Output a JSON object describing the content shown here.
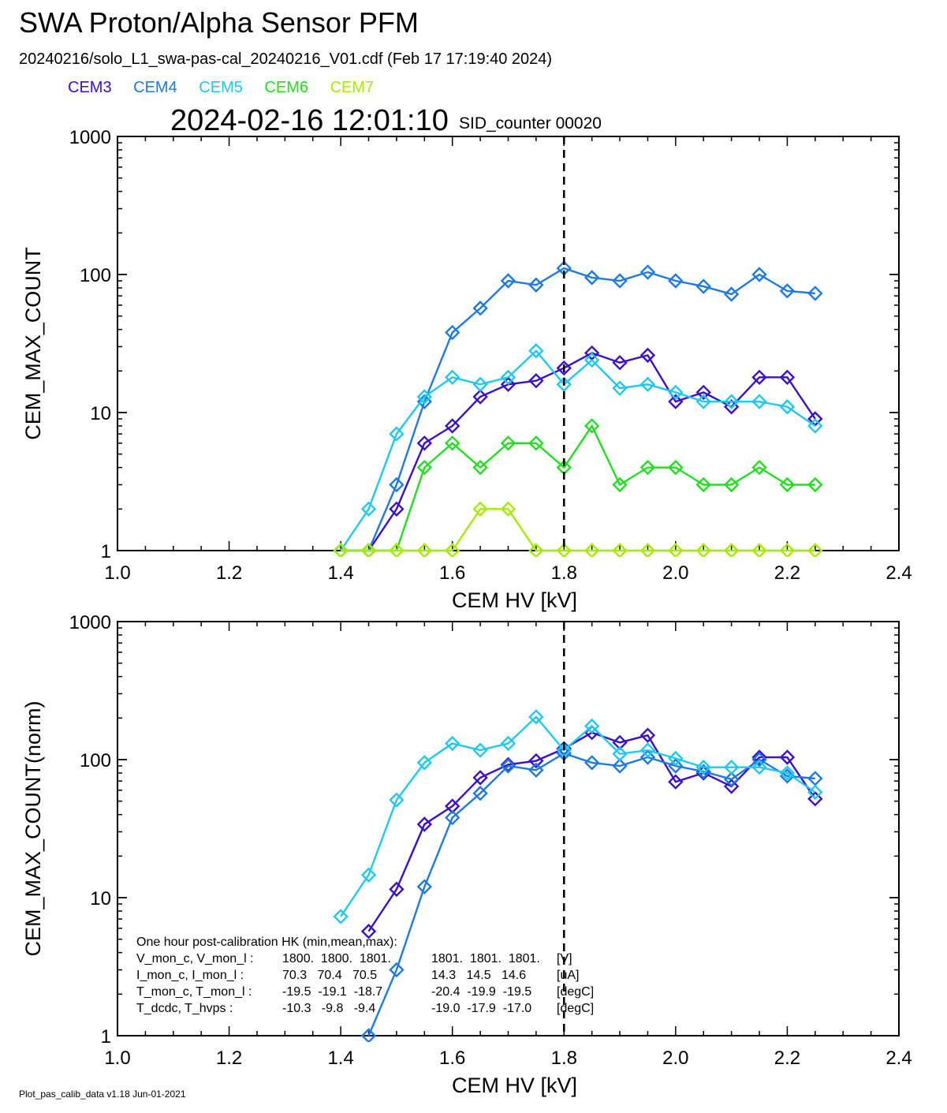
{
  "header": {
    "title": "SWA Proton/Alpha Sensor PFM",
    "subtitle": "20240216/solo_L1_swa-pas-cal_20240216_V01.cdf  (Feb 17 17:19:40 2024)",
    "timestamp": "2024-02-16 12:01:10",
    "sid_counter": "SID_counter 00020"
  },
  "legend": [
    {
      "label": "CEM3",
      "color": "#3a10cc"
    },
    {
      "label": "CEM4",
      "color": "#1e7ae0"
    },
    {
      "label": "CEM5",
      "color": "#1ec8f0"
    },
    {
      "label": "CEM6",
      "color": "#22dd22"
    },
    {
      "label": "CEM7",
      "color": "#a6ea00"
    }
  ],
  "footer": "Plot_pas_calib_data v1.18 Jun-01-2021",
  "marker_line_x": 1.8,
  "chart_data": [
    {
      "type": "line",
      "xlabel": "CEM HV [kV]",
      "ylabel": "CEM_MAX_COUNT",
      "xlim": [
        1.0,
        2.4
      ],
      "ylim": [
        1,
        1000
      ],
      "yscale": "log",
      "x_ticks": [
        "1.0",
        "1.2",
        "1.4",
        "1.6",
        "1.8",
        "2.0",
        "2.2",
        "2.4"
      ],
      "y_ticks": [
        "1",
        "10",
        "100",
        "1000"
      ],
      "series": [
        {
          "name": "CEM3",
          "color": "#3a10cc",
          "x": [
            1.4,
            1.45,
            1.5,
            1.55,
            1.6,
            1.65,
            1.7,
            1.75,
            1.8,
            1.85,
            1.9,
            1.95,
            2.0,
            2.05,
            2.1,
            2.15,
            2.2,
            2.25
          ],
          "y": [
            1,
            1,
            2,
            6,
            8,
            13,
            16,
            17,
            21,
            27,
            23,
            26,
            12,
            14,
            11,
            18,
            18,
            9
          ]
        },
        {
          "name": "CEM4",
          "color": "#1e7ae0",
          "x": [
            1.4,
            1.45,
            1.5,
            1.55,
            1.6,
            1.65,
            1.7,
            1.75,
            1.8,
            1.85,
            1.9,
            1.95,
            2.0,
            2.05,
            2.1,
            2.15,
            2.2,
            2.25
          ],
          "y": [
            1,
            1,
            3,
            12,
            38,
            57,
            90,
            84,
            111,
            95,
            90,
            104,
            90,
            82,
            72,
            100,
            76,
            73
          ]
        },
        {
          "name": "CEM5",
          "color": "#1ec8f0",
          "x": [
            1.4,
            1.45,
            1.5,
            1.55,
            1.6,
            1.65,
            1.7,
            1.75,
            1.8,
            1.85,
            1.9,
            1.95,
            2.0,
            2.05,
            2.1,
            2.15,
            2.2,
            2.25
          ],
          "y": [
            1,
            2,
            7,
            13,
            18,
            16,
            18,
            28,
            16,
            24,
            15,
            16,
            14,
            12,
            12,
            12,
            11,
            8
          ]
        },
        {
          "name": "CEM6",
          "color": "#22dd22",
          "x": [
            1.4,
            1.45,
            1.5,
            1.55,
            1.6,
            1.65,
            1.7,
            1.75,
            1.8,
            1.85,
            1.9,
            1.95,
            2.0,
            2.05,
            2.1,
            2.15,
            2.2,
            2.25
          ],
          "y": [
            1,
            1,
            1,
            4,
            6,
            4,
            6,
            6,
            4,
            8,
            3,
            4,
            4,
            3,
            3,
            4,
            3,
            3
          ]
        },
        {
          "name": "CEM7",
          "color": "#a6ea00",
          "x": [
            1.4,
            1.45,
            1.5,
            1.55,
            1.6,
            1.65,
            1.7,
            1.75,
            1.8,
            1.85,
            1.9,
            1.95,
            2.0,
            2.05,
            2.1,
            2.15,
            2.2,
            2.25
          ],
          "y": [
            1,
            1,
            1,
            1,
            1,
            2,
            2,
            1,
            1,
            1,
            1,
            1,
            1,
            1,
            1,
            1,
            1,
            1
          ]
        }
      ]
    },
    {
      "type": "line",
      "xlabel": "CEM HV [kV]",
      "ylabel": "CEM_MAX_COUNT(norm)",
      "xlim": [
        1.0,
        2.4
      ],
      "ylim": [
        1,
        1000
      ],
      "yscale": "log",
      "x_ticks": [
        "1.0",
        "1.2",
        "1.4",
        "1.6",
        "1.8",
        "2.0",
        "2.2",
        "2.4"
      ],
      "y_ticks": [
        "1",
        "10",
        "100",
        "1000"
      ],
      "series": [
        {
          "name": "CEM3",
          "color": "#3a10cc",
          "x": [
            1.45,
            1.5,
            1.55,
            1.6,
            1.65,
            1.7,
            1.75,
            1.8,
            1.85,
            1.9,
            1.95,
            2.0,
            2.05,
            2.1,
            2.15,
            2.2,
            2.25
          ],
          "y": [
            5.7,
            11.5,
            34,
            46,
            74,
            92,
            98,
            120,
            157,
            133,
            150,
            69,
            80,
            64,
            104,
            104,
            52
          ]
        },
        {
          "name": "CEM4",
          "color": "#1e7ae0",
          "x": [
            1.45,
            1.5,
            1.55,
            1.6,
            1.65,
            1.7,
            1.75,
            1.8,
            1.85,
            1.9,
            1.95,
            2.0,
            2.05,
            2.1,
            2.15,
            2.2,
            2.25
          ],
          "y": [
            1,
            3,
            12,
            38,
            57,
            90,
            84,
            111,
            95,
            90,
            104,
            90,
            82,
            72,
            100,
            76,
            73
          ]
        },
        {
          "name": "CEM5",
          "color": "#1ec8f0",
          "x": [
            1.4,
            1.45,
            1.5,
            1.55,
            1.6,
            1.65,
            1.7,
            1.75,
            1.8,
            1.85,
            1.9,
            1.95,
            2.0,
            2.05,
            2.1,
            2.15,
            2.2,
            2.25
          ],
          "y": [
            7.3,
            14.6,
            51,
            95,
            131,
            117,
            131,
            204,
            117,
            175,
            110,
            117,
            102,
            88,
            88,
            88,
            80,
            58
          ]
        }
      ],
      "annotation": {
        "heading": "One hour post-calibration HK (min,mean,max):",
        "rows": [
          {
            "label": "V_mon_c, V_mon_l :",
            "a": "1800.  1800.  1801.",
            "b": "1801.  1801.  1801.",
            "unit": "[V]"
          },
          {
            "label": "I_mon_c,  I_mon_l :",
            "a": "70.3   70.4   70.5",
            "b": "14.3   14.5   14.6",
            "unit": "[uA]"
          },
          {
            "label": "T_mon_c, T_mon_l :",
            "a": "-19.5  -19.1  -18.7",
            "b": "-20.4  -19.9  -19.5",
            "unit": "[degC]"
          },
          {
            "label": "T_dcdc,    T_hvps :",
            "a": "-10.3   -9.8   -9.4",
            "b": "-19.0  -17.9  -17.0",
            "unit": "[degC]"
          }
        ]
      }
    }
  ]
}
